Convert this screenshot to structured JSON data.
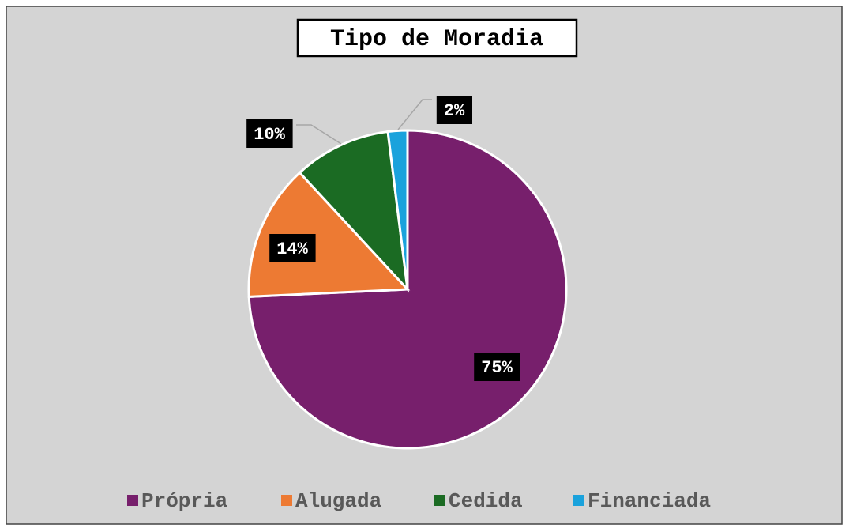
{
  "chart_data": {
    "type": "pie",
    "title": "Tipo de Moradia",
    "categories": [
      "Própria",
      "Alugada",
      "Cedida",
      "Financiada"
    ],
    "values": [
      75,
      14,
      10,
      2
    ],
    "value_labels": [
      "75%",
      "14%",
      "10%",
      "2%"
    ],
    "colors": [
      "#771f6c",
      "#ed7a33",
      "#1b6b23",
      "#1aa2dc"
    ],
    "legend": "bottom"
  }
}
